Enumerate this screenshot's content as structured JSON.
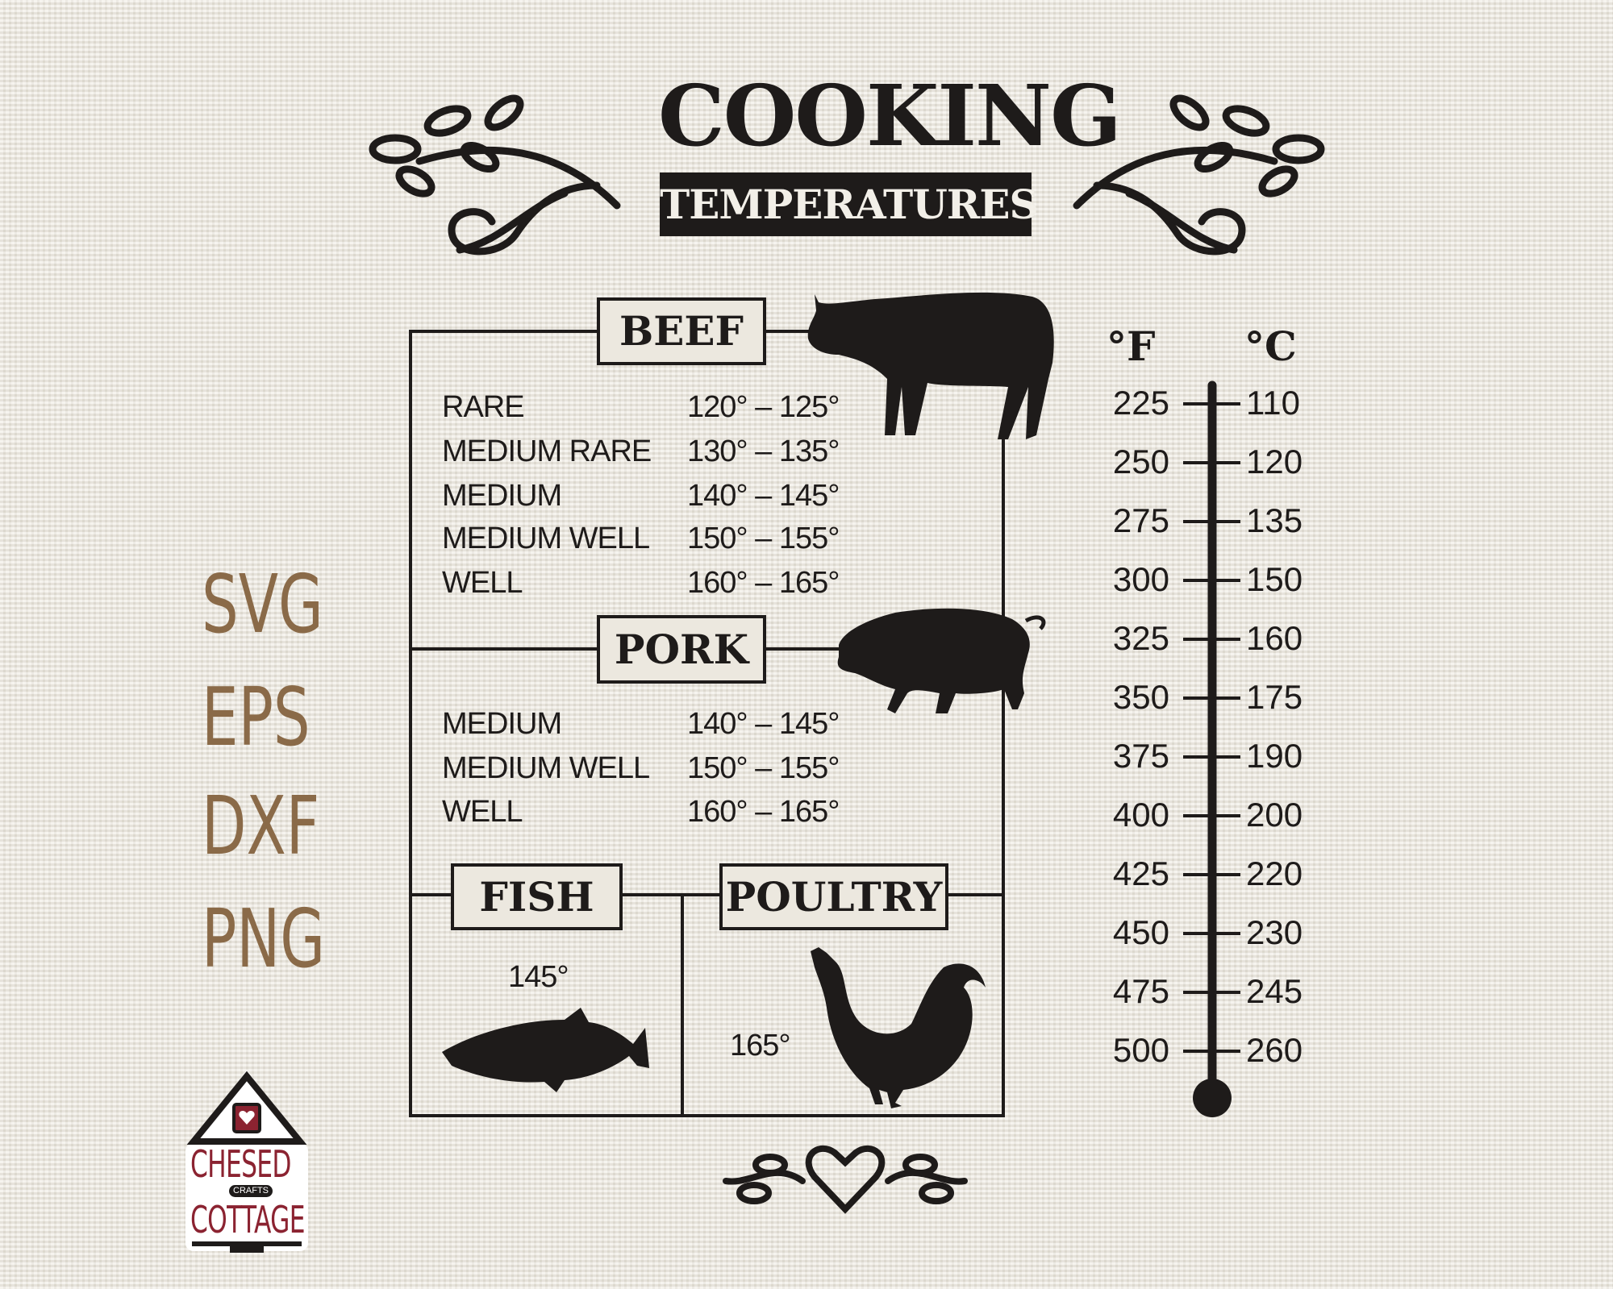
{
  "header": {
    "title": "COOKING",
    "subtitle": "TEMPERATURES"
  },
  "beef": {
    "label": "BEEF",
    "rows": [
      {
        "doneness": "RARE",
        "temp": "120° – 125°"
      },
      {
        "doneness": "MEDIUM RARE",
        "temp": "130° – 135°"
      },
      {
        "doneness": "MEDIUM",
        "temp": "140° – 145°"
      },
      {
        "doneness": "MEDIUM WELL",
        "temp": "150° – 155°"
      },
      {
        "doneness": "WELL",
        "temp": "160° – 165°"
      }
    ]
  },
  "pork": {
    "label": "PORK",
    "rows": [
      {
        "doneness": "MEDIUM",
        "temp": "140° – 145°"
      },
      {
        "doneness": "MEDIUM WELL",
        "temp": "150° – 155°"
      },
      {
        "doneness": "WELL",
        "temp": "160° – 165°"
      }
    ]
  },
  "fish": {
    "label": "FISH",
    "temp": "145°"
  },
  "poultry": {
    "label": "POULTRY",
    "temp": "165°"
  },
  "thermometer": {
    "f_unit": "°F",
    "c_unit": "°C",
    "fahrenheit": [
      "225",
      "250",
      "275",
      "300",
      "325",
      "350",
      "375",
      "400",
      "425",
      "450",
      "475",
      "500"
    ],
    "celsius": [
      "110",
      "120",
      "135",
      "150",
      "160",
      "175",
      "190",
      "200",
      "220",
      "230",
      "245",
      "260"
    ]
  },
  "formats": [
    "SVG",
    "EPS",
    "DXF",
    "PNG"
  ],
  "logo": {
    "line1": "CHESED",
    "badge": "CRAFTS",
    "line2": "COTTAGE"
  },
  "colors": {
    "ink": "#1e1b1a",
    "format_text": "#8a6a48",
    "logo_red": "#8b2331",
    "background": "#ece8df"
  }
}
